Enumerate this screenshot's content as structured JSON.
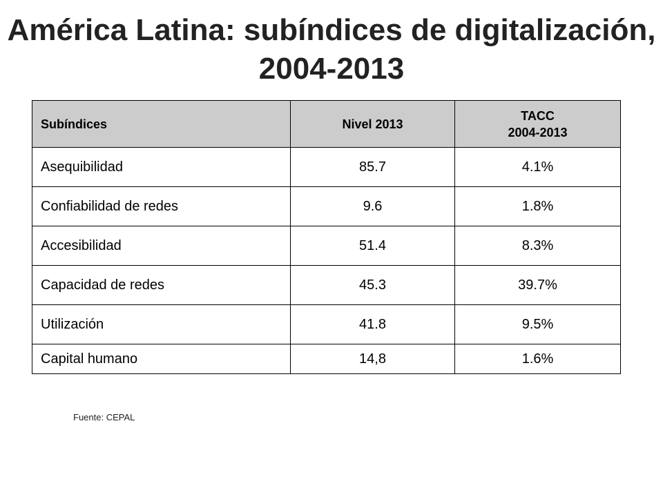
{
  "slide": {
    "title": "América Latina: subíndices de digitalización, 2004-2013"
  },
  "table": {
    "headers": {
      "subindice": "Subíndices",
      "nivel": "Nivel 2013",
      "tacc_line1": "TACC",
      "tacc_line2": "2004-2013"
    },
    "rows": [
      {
        "name": "Asequibilidad",
        "nivel": "85.7",
        "tacc": "4.1%"
      },
      {
        "name": "Confiabilidad de redes",
        "nivel": "9.6",
        "tacc": "1.8%"
      },
      {
        "name": "Accesibilidad",
        "nivel": "51.4",
        "tacc": "8.3%"
      },
      {
        "name": "Capacidad de redes",
        "nivel": "45.3",
        "tacc": "39.7%"
      },
      {
        "name": "Utilización",
        "nivel": "41.8",
        "tacc": "9.5%"
      },
      {
        "name": "Capital humano",
        "nivel": "14,8",
        "tacc": "1.6%"
      }
    ]
  },
  "footer": {
    "source": "Fuente: CEPAL"
  },
  "colors": {
    "header_background": "#cccccc",
    "border": "#000000",
    "title": "#222222"
  }
}
